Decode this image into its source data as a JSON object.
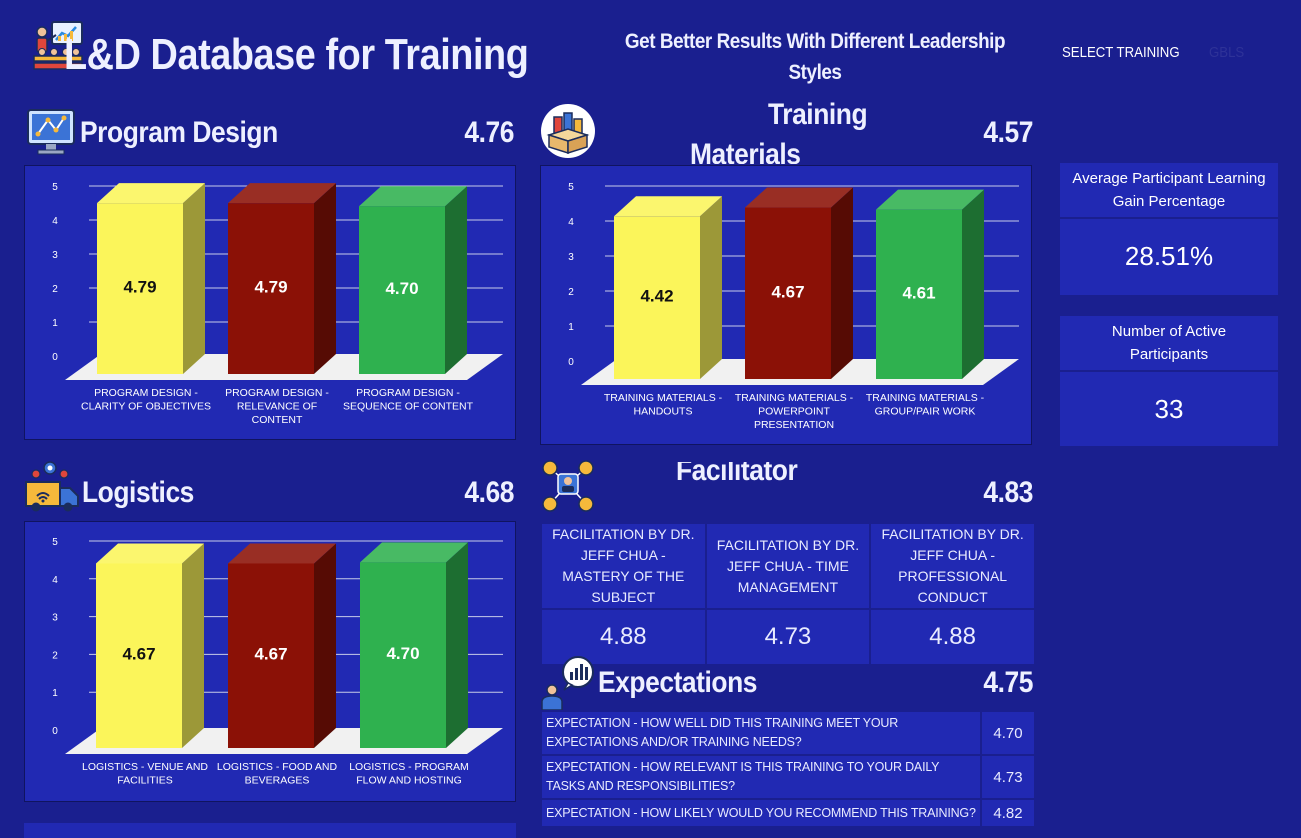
{
  "header": {
    "title": "L&D Database for Training",
    "subtitle": "Get Better Results With Different Leadership Styles",
    "select_label": "SELECT TRAINING",
    "select_value": "GBLS"
  },
  "colors": {
    "background": "#1a1f8f",
    "panel": "#2129b3",
    "bar_yellow": "#fbf55a",
    "bar_red": "#8b1106",
    "bar_green": "#2fb14f"
  },
  "icons": {
    "title": "presenter-chart-icon",
    "program_design": "design-monitor-icon",
    "training_materials": "materials-box-icon",
    "logistics": "delivery-truck-icon",
    "facilitator": "team-network-icon",
    "expectations": "chart-speech-icon"
  },
  "program_design": {
    "title": "Program Design",
    "score": "4.76",
    "chart_data": {
      "type": "bar",
      "categories": [
        [
          "PROGRAM DESIGN -",
          "CLARITY OF OBJECTIVES"
        ],
        [
          "PROGRAM DESIGN -",
          "RELEVANCE OF",
          "CONTENT"
        ],
        [
          "PROGRAM DESIGN -",
          "SEQUENCE OF CONTENT"
        ]
      ],
      "values": [
        4.79,
        4.79,
        4.7
      ],
      "labels": [
        "4.79",
        "4.79",
        "4.70"
      ],
      "yticks": [
        "0",
        "1",
        "2",
        "3",
        "4",
        "5"
      ],
      "ylim": [
        0,
        5
      ],
      "grid": true
    }
  },
  "training_materials": {
    "title_line1": "Training",
    "title_line2": "Materials",
    "score": "4.57",
    "chart_data": {
      "type": "bar",
      "categories": [
        [
          "TRAINING MATERIALS -",
          "HANDOUTS"
        ],
        [
          "TRAINING MATERIALS -",
          "POWERPOINT",
          "PRESENTATION"
        ],
        [
          "TRAINING MATERIALS -",
          "GROUP/PAIR WORK"
        ]
      ],
      "values": [
        4.42,
        4.67,
        4.61
      ],
      "labels": [
        "4.42",
        "4.67",
        "4.61"
      ],
      "yticks": [
        "0",
        "1",
        "2",
        "3",
        "4",
        "5"
      ],
      "ylim": [
        0,
        5
      ],
      "grid": true
    }
  },
  "logistics": {
    "title": "Logistics",
    "score": "4.68",
    "chart_data": {
      "type": "bar",
      "categories": [
        [
          "LOGISTICS - VENUE AND",
          "FACILITIES"
        ],
        [
          "LOGISTICS - FOOD AND",
          "BEVERAGES"
        ],
        [
          "LOGISTICS - PROGRAM",
          "FLOW AND HOSTING"
        ]
      ],
      "values": [
        4.67,
        4.67,
        4.7
      ],
      "labels": [
        "4.67",
        "4.67",
        "4.70"
      ],
      "yticks": [
        "0",
        "1",
        "2",
        "3",
        "4",
        "5"
      ],
      "ylim": [
        0,
        5
      ],
      "grid": true
    }
  },
  "facilitator": {
    "title": "Facilitator",
    "score": "4.83",
    "columns": [
      {
        "label": "FACILITATION BY DR. JEFF CHUA - MASTERY OF THE SUBJECT",
        "value": "4.88"
      },
      {
        "label": "FACILITATION BY DR. JEFF CHUA - TIME MANAGEMENT",
        "value": "4.73"
      },
      {
        "label": "FACILITATION BY DR. JEFF CHUA - PROFESSIONAL CONDUCT",
        "value": "4.88"
      }
    ]
  },
  "expectations": {
    "title": "Expectations",
    "score": "4.75",
    "rows": [
      {
        "question": "EXPECTATION - HOW WELL DID THIS TRAINING MEET YOUR EXPECTATIONS AND/OR TRAINING NEEDS?",
        "value": "4.70"
      },
      {
        "question": "EXPECTATION - HOW RELEVANT IS THIS TRAINING TO YOUR DAILY TASKS AND RESPONSIBILITIES?",
        "value": "4.73"
      },
      {
        "question": "EXPECTATION - HOW LIKELY WOULD YOU RECOMMEND THIS TRAINING?",
        "value": "4.82"
      }
    ]
  },
  "kpis": {
    "learning_gain": {
      "label": "Average Participant Learning Gain Percentage",
      "value": "28.51%"
    },
    "active_participants": {
      "label": "Number of Active Participants",
      "value": "33"
    }
  }
}
